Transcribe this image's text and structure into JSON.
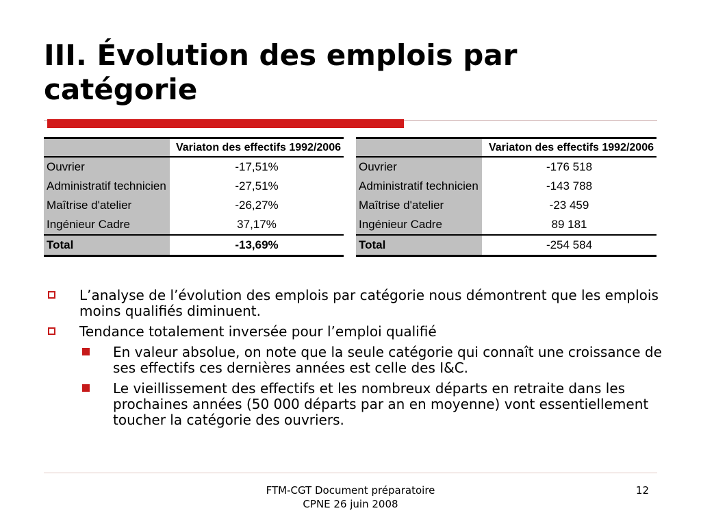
{
  "slide": {
    "title": "III. Évolution des emplois par catégorie"
  },
  "table_percent": {
    "header": "Variaton des effectifs 1992/2006",
    "rows": [
      {
        "category": "Ouvrier",
        "value": "-17,51%"
      },
      {
        "category": "Administratif technicien",
        "value": "-27,51%"
      },
      {
        "category": "Maîtrise d'atelier",
        "value": "-26,27%"
      },
      {
        "category": "Ingénieur Cadre",
        "value": "37,17%"
      }
    ],
    "total": {
      "label": "Total",
      "value": "-13,69%"
    }
  },
  "table_absolute": {
    "header": "Variaton des effectifs 1992/2006",
    "rows": [
      {
        "category": "Ouvrier",
        "value": "-176 518"
      },
      {
        "category": "Administratif technicien",
        "value": "-143 788"
      },
      {
        "category": "Maîtrise d'atelier",
        "value": "-23 459"
      },
      {
        "category": "Ingénieur Cadre",
        "value": "89 181"
      }
    ],
    "total": {
      "label": "Total",
      "value": "-254 584"
    }
  },
  "bullets": [
    {
      "text": "L’analyse de l’évolution des emplois par catégorie nous démontrent que les emplois moins qualifiés diminuent."
    },
    {
      "text": "Tendance totalement inversée pour l’emploi qualifié",
      "sub": [
        "En valeur absolue, on note que la seule catégorie qui connaît une croissance de ses effectifs ces dernières années est celle des I&C.",
        "Le vieillissement des effectifs et les nombreux départs en retraite dans les prochaines années (50 000 départs par an en moyenne) vont essentiellement toucher la catégorie des ouvriers."
      ]
    }
  ],
  "footer": {
    "line1": "FTM-CGT Document préparatoire",
    "line2": "CPNE 26 juin 2008",
    "page_number": "12"
  },
  "colors": {
    "accent": "#d21a1a",
    "table_shade": "#c0c0c0"
  }
}
